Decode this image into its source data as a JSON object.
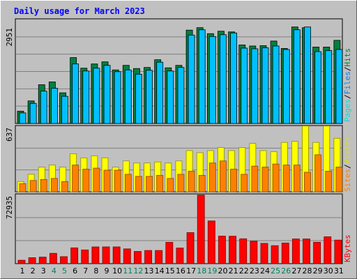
{
  "chart_data": [
    {
      "type": "bar",
      "panel": "top",
      "title": "Daily usage for March 2023",
      "ymax_label": "2951",
      "right_label_parts": [
        "Pages",
        "/",
        "Files",
        "/",
        "Hits"
      ],
      "categories": [
        "1",
        "2",
        "3",
        "4",
        "5",
        "6",
        "7",
        "8",
        "9",
        "10",
        "11",
        "12",
        "13",
        "14",
        "15",
        "16",
        "17",
        "18",
        "19",
        "20",
        "21",
        "22",
        "23",
        "24",
        "25",
        "26",
        "27",
        "28",
        "29",
        "30",
        "31"
      ],
      "ylim": [
        0,
        2951
      ],
      "grid": true,
      "series": [
        {
          "name": "Hits",
          "values": [
            350,
            640,
            1100,
            1180,
            870,
            1870,
            1570,
            1690,
            1750,
            1520,
            1650,
            1560,
            1590,
            1810,
            1580,
            1650,
            2650,
            2720,
            2550,
            2620,
            2600,
            2230,
            2200,
            2210,
            2340,
            2130,
            2740,
            2720,
            2170,
            2170,
            2360
          ]
        },
        {
          "name": "Files",
          "values": [
            300,
            570,
            920,
            1000,
            770,
            1690,
            1490,
            1570,
            1650,
            1470,
            1520,
            1400,
            1510,
            1740,
            1490,
            1590,
            2510,
            2660,
            2470,
            2520,
            2570,
            2140,
            2120,
            2150,
            2200,
            2100,
            2660,
            2740,
            2040,
            2070,
            2100
          ]
        },
        {
          "name": "Pages",
          "values": [
            0,
            0,
            0,
            0,
            0,
            0,
            0,
            0,
            0,
            0,
            0,
            0,
            0,
            0,
            0,
            0,
            0,
            0,
            0,
            0,
            0,
            0,
            0,
            0,
            0,
            0,
            0,
            0,
            0,
            0,
            0
          ]
        }
      ],
      "colors": {
        "Hits": "#008040",
        "Files": "#00c0ff",
        "Pages": "#00e0e0"
      }
    },
    {
      "type": "bar",
      "panel": "middle",
      "ymax_label": "637",
      "right_label_parts": [
        "Sites",
        "/",
        "Visits"
      ],
      "categories": [
        "1",
        "2",
        "3",
        "4",
        "5",
        "6",
        "7",
        "8",
        "9",
        "10",
        "11",
        "12",
        "13",
        "14",
        "15",
        "16",
        "17",
        "18",
        "19",
        "20",
        "21",
        "22",
        "23",
        "24",
        "25",
        "26",
        "27",
        "28",
        "29",
        "30",
        "31"
      ],
      "ylim": [
        0,
        637
      ],
      "grid": true,
      "series": [
        {
          "name": "Visits",
          "values": [
            100,
            170,
            240,
            260,
            240,
            370,
            330,
            350,
            330,
            240,
            300,
            280,
            280,
            290,
            280,
            300,
            400,
            380,
            400,
            430,
            400,
            430,
            470,
            400,
            390,
            480,
            490,
            640,
            480,
            640,
            520
          ]
        },
        {
          "name": "Sites",
          "values": [
            80,
            110,
            120,
            130,
            100,
            260,
            220,
            230,
            210,
            210,
            170,
            150,
            150,
            160,
            130,
            170,
            200,
            160,
            280,
            300,
            220,
            170,
            250,
            240,
            270,
            260,
            260,
            190,
            360,
            200,
            240
          ]
        }
      ],
      "colors": {
        "Visits": "#ffff00",
        "Sites": "#ff8000"
      }
    },
    {
      "type": "bar",
      "panel": "bottom",
      "ymax_label": "72935",
      "right_label_parts": [
        "KBytes"
      ],
      "categories": [
        "1",
        "2",
        "3",
        "4",
        "5",
        "6",
        "7",
        "8",
        "9",
        "10",
        "11",
        "12",
        "13",
        "14",
        "15",
        "16",
        "17",
        "18",
        "19",
        "20",
        "21",
        "22",
        "23",
        "24",
        "25",
        "26",
        "27",
        "28",
        "29",
        "30",
        "31"
      ],
      "ylim": [
        0,
        72935
      ],
      "grid": true,
      "series": [
        {
          "name": "KBytes",
          "values": [
            3600,
            6300,
            6900,
            10900,
            7400,
            16700,
            14500,
            17700,
            17700,
            17700,
            15600,
            12900,
            13900,
            13900,
            22500,
            16500,
            32800,
            72400,
            45100,
            29100,
            29000,
            26300,
            23700,
            21400,
            19000,
            21800,
            26100,
            26100,
            22600,
            28400,
            24900
          ]
        }
      ],
      "colors": {
        "KBytes": "#ff0000"
      }
    }
  ],
  "x_axis": {
    "labels": [
      "1",
      "2",
      "3",
      "4",
      "5",
      "6",
      "7",
      "8",
      "9",
      "10",
      "11",
      "12",
      "13",
      "14",
      "15",
      "16",
      "17",
      "18",
      "19",
      "20",
      "21",
      "22",
      "23",
      "24",
      "25",
      "26",
      "27",
      "28",
      "29",
      "30",
      "31"
    ],
    "weekend_days": [
      "4",
      "5",
      "11",
      "12",
      "18",
      "19",
      "25",
      "26"
    ],
    "weekday_color": "#000000",
    "weekend_color": "#00805c"
  },
  "colors": {
    "background": "#c0c0c0",
    "panel_bg": "#c0c0c0",
    "title": "#0000ff",
    "grid": "#808080"
  }
}
